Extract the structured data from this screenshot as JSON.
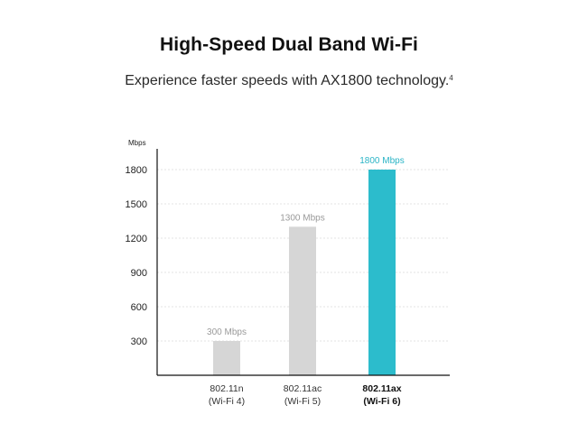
{
  "header": {
    "title": "High-Speed Dual Band Wi-Fi",
    "subtitle": "Experience faster speeds with AX1800 technology.",
    "subtitle_sup": "4"
  },
  "colors": {
    "bar_default": "#d6d6d6",
    "bar_highlight": "#2cbccc",
    "label_default": "#9a9a9a",
    "label_highlight": "#2ab4c6"
  },
  "chart_data": {
    "type": "bar",
    "ylabel": "Mbps",
    "ylim": [
      0,
      2000
    ],
    "yticks": [
      300,
      600,
      900,
      1200,
      1500,
      1800
    ],
    "grid": true,
    "categories": [
      {
        "line1": "802.11n",
        "line2": "(Wi-Fi 4)"
      },
      {
        "line1": "802.11ac",
        "line2": "(Wi-Fi 5)"
      },
      {
        "line1": "802.11ax",
        "line2": "(Wi-Fi 6)"
      }
    ],
    "values": [
      300,
      1300,
      1800
    ],
    "bar_labels": [
      "300 Mbps",
      "1300 Mbps",
      "1800 Mbps"
    ],
    "highlight_index": 2
  }
}
